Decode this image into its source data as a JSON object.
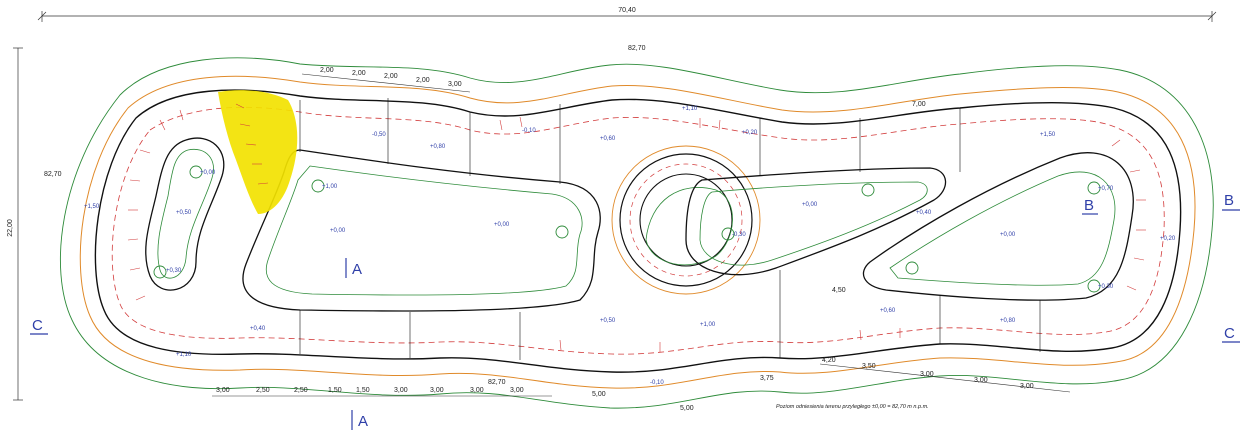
{
  "overall_length": "70,40",
  "overall_width": "22,00",
  "elev_reference": "82,70",
  "section_marks": [
    "A",
    "A",
    "B",
    "B",
    "C",
    "C"
  ],
  "note": "Poziom odniesienia terenu przyległego ±0,00 = 82,70 m n.p.m.",
  "dims_top": [
    "2,00",
    "2,00",
    "2,00",
    "2,00",
    "3,00"
  ],
  "dims_bottom": [
    "3,00",
    "2,50",
    "2,50",
    "1,50",
    "1,50",
    "3,00",
    "3,00",
    "3,00",
    "3,00"
  ],
  "dims_bottom_right": [
    "4,20",
    "3,50",
    "3,00",
    "3,00",
    "3,00"
  ],
  "dims_misc": [
    "5,00",
    "3,75",
    "5,00",
    "7,00",
    "4,50"
  ],
  "levels": [
    "+0,00",
    "+0,50",
    "+0,30",
    "+1,00",
    "-0,50",
    "+0,80",
    "-0,10",
    "+0,60",
    "+1,10",
    "+0,20",
    "-0,30",
    "+0,40",
    "+0,70",
    "+1,50"
  ]
}
